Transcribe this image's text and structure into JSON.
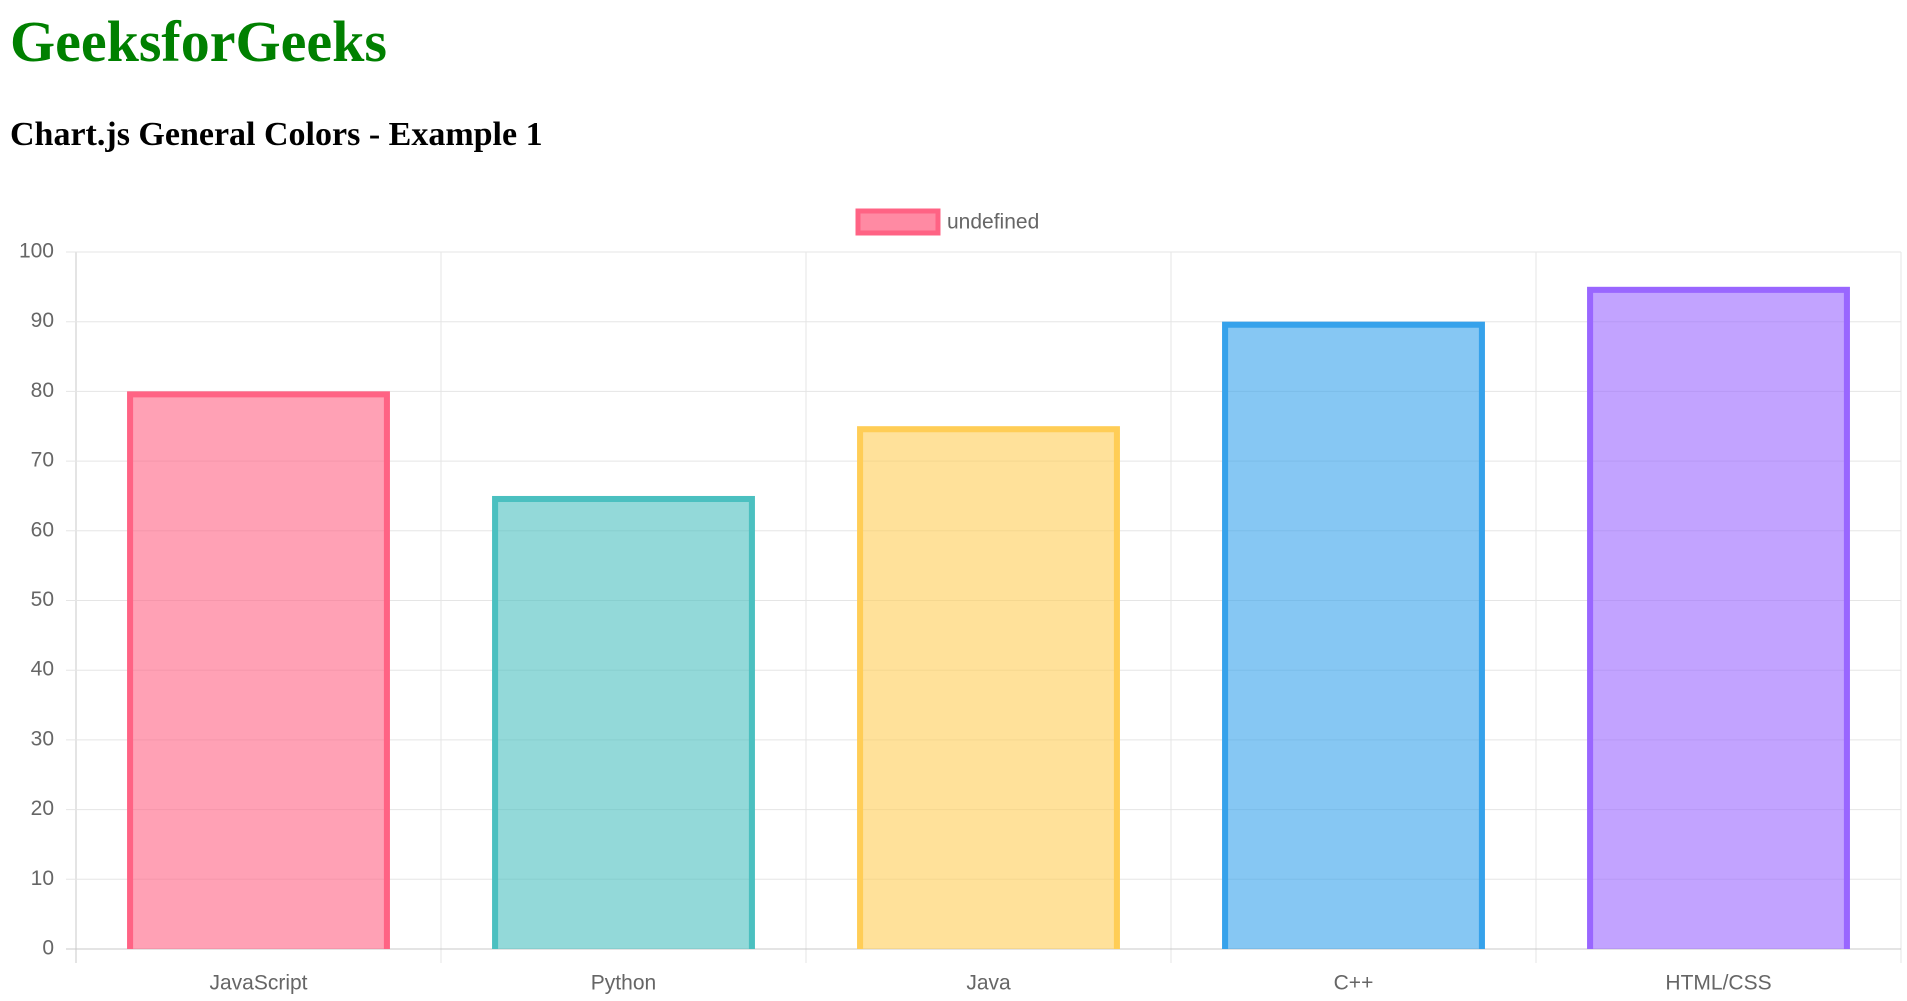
{
  "header": {
    "title": "GeeksforGeeks",
    "subtitle": "Chart.js General Colors - Example 1"
  },
  "chart_data": {
    "type": "bar",
    "categories": [
      "JavaScript",
      "Python",
      "Java",
      "C++",
      "HTML/CSS"
    ],
    "series": [
      {
        "name": "undefined",
        "values": [
          80,
          65,
          75,
          90,
          95
        ],
        "colors": [
          "#ff6384",
          "#4bc0c0",
          "#ffcd56",
          "#36a2eb",
          "#9966ff"
        ]
      }
    ],
    "ylim": [
      0,
      100
    ],
    "yticks": [
      0,
      10,
      20,
      30,
      40,
      50,
      60,
      70,
      80,
      90,
      100
    ],
    "grid": true,
    "legend": "top"
  }
}
